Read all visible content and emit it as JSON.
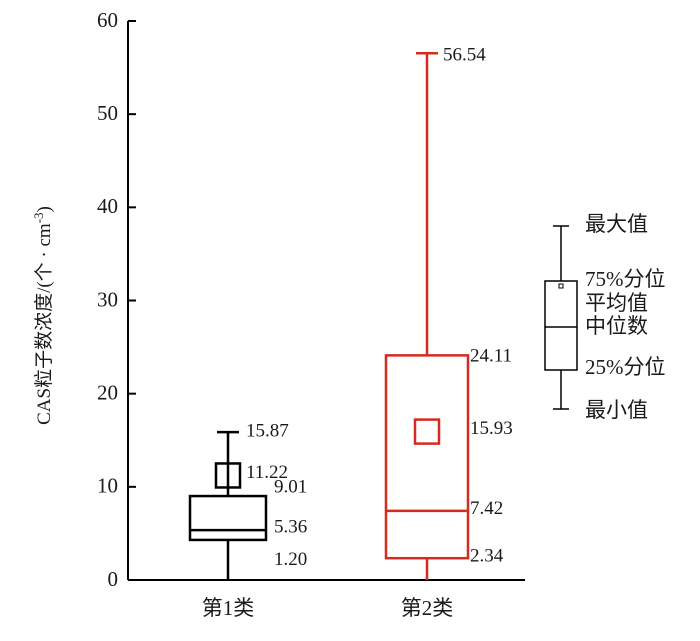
{
  "chart_data": {
    "type": "box",
    "ylabel": "CAS粒子数浓度/(个 · cm",
    "ylabel_superscript": "-3",
    "ylabel_suffix": ")",
    "ylim": [
      0,
      60
    ],
    "yticks": [
      "0",
      "10",
      "20",
      "30",
      "40",
      "50",
      "60"
    ],
    "categories": [
      "第1类",
      "第2类"
    ],
    "series": [
      {
        "category": "第1类",
        "color": "#000000",
        "min": 1.2,
        "q1": 4.3,
        "median": 5.36,
        "mean": 11.22,
        "q3": 9.01,
        "max": 15.87,
        "whisker_low": 0,
        "labels": {
          "max": "15.87",
          "mean": "11.22",
          "q3": "9.01",
          "median": "5.36",
          "min": "1.20"
        }
      },
      {
        "category": "第2类",
        "color": "#d42a20",
        "min": 2.34,
        "q1": 2.34,
        "median": 7.42,
        "mean": 15.93,
        "q3": 24.11,
        "max": 56.54,
        "whisker_low": 0,
        "labels": {
          "max": "56.54",
          "q3": "24.11",
          "mean": "15.93",
          "median": "7.42",
          "min": "2.34"
        }
      }
    ],
    "legend": {
      "position": "right",
      "items": [
        "最大值",
        "75%分位",
        "平均值",
        "中位数",
        "25%分位",
        "最小值"
      ]
    }
  }
}
